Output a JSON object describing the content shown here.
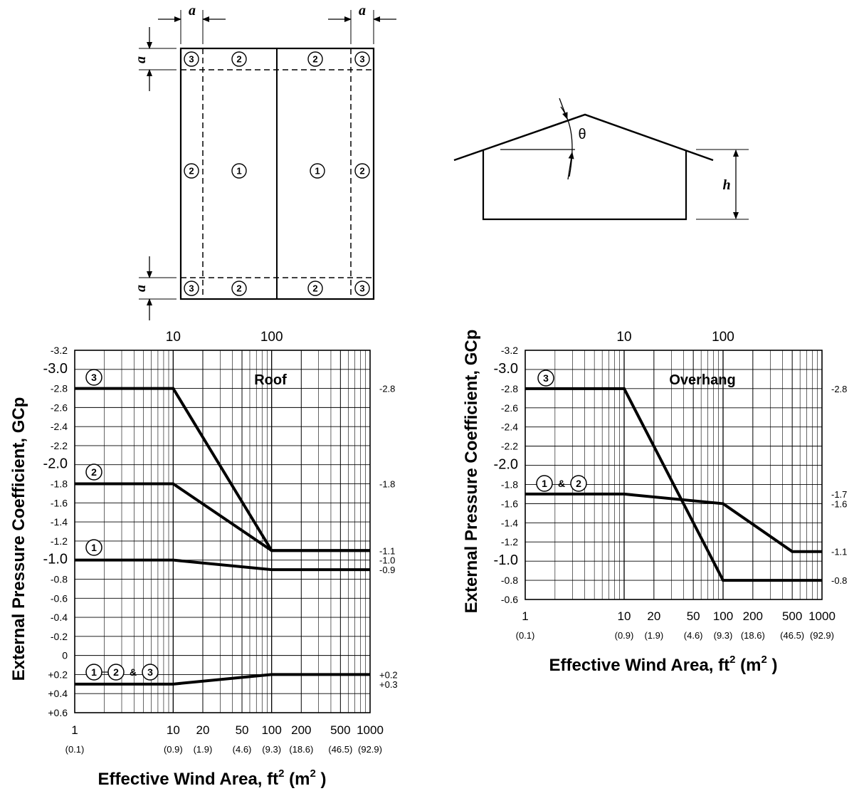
{
  "plan": {
    "dim_a": "a",
    "zones": [
      "1",
      "2",
      "3"
    ]
  },
  "section": {
    "angle_label": "θ",
    "height_label": "h"
  },
  "labels": {
    "ylabel": "External Pressure Coefficient, GCp",
    "xlabel": "Effective Wind Area, ft",
    "xlabel_sup": "2",
    "xlabel_metric": " (m",
    "xlabel_metric_sup": "2",
    "xlabel_close": " )",
    "amp": "&"
  },
  "chart_data": [
    {
      "type": "line",
      "title": "Roof",
      "xscale": "log",
      "xlim": [
        1,
        1000
      ],
      "ylim": [
        -3.2,
        0.6
      ],
      "y_inverted": true,
      "grid": true,
      "top_ticks": [
        "10",
        "100"
      ],
      "yticks": [
        "-3.2",
        "-3.0",
        "-2.8",
        "-2.6",
        "-2.4",
        "-2.2",
        "-2.0",
        "-1.8",
        "-1.6",
        "-1.4",
        "-1.2",
        "-1.0",
        "-0.8",
        "-0.6",
        "-0.4",
        "-0.2",
        "0",
        "+0.2",
        "+0.4",
        "+0.6"
      ],
      "xticks": [
        {
          "x": 1,
          "ft2": "1",
          "m2": "(0.1)"
        },
        {
          "x": 10,
          "ft2": "10",
          "m2": "(0.9)"
        },
        {
          "x": 20,
          "ft2": "20",
          "m2": "(1.9)"
        },
        {
          "x": 50,
          "ft2": "50",
          "m2": "(4.6)"
        },
        {
          "x": 100,
          "ft2": "100",
          "m2": "(9.3)"
        },
        {
          "x": 200,
          "ft2": "200",
          "m2": "(18.6)"
        },
        {
          "x": 500,
          "ft2": "500",
          "m2": "(46.5)"
        },
        {
          "x": 1000,
          "ft2": "1000",
          "m2": "(92.9)"
        }
      ],
      "series": [
        {
          "zones": [
            "3"
          ],
          "x": [
            1,
            10,
            100,
            1000
          ],
          "y": [
            -2.8,
            -2.8,
            -1.1,
            -1.1
          ]
        },
        {
          "zones": [
            "2"
          ],
          "x": [
            1,
            10,
            100,
            1000
          ],
          "y": [
            -1.8,
            -1.8,
            -1.1,
            -1.1
          ]
        },
        {
          "zones": [
            "1"
          ],
          "x": [
            1,
            10,
            100,
            1000
          ],
          "y": [
            -1.0,
            -1.0,
            -0.9,
            -0.9
          ]
        },
        {
          "zones": [
            "1",
            "2",
            "3"
          ],
          "x": [
            1,
            10,
            100,
            1000
          ],
          "y": [
            0.3,
            0.3,
            0.2,
            0.2
          ]
        }
      ],
      "end_labels": [
        {
          "y": -2.8,
          "text": "-2.8"
        },
        {
          "y": -1.8,
          "text": "-1.8"
        },
        {
          "y": -1.1,
          "text": "-1.1"
        },
        {
          "y": -1.0,
          "text": "-1.0"
        },
        {
          "y": -0.9,
          "text": "-0.9"
        },
        {
          "y": 0.2,
          "text": "+0.2"
        },
        {
          "y": 0.3,
          "text": "+0.3"
        }
      ]
    },
    {
      "type": "line",
      "title": "Overhang",
      "xscale": "log",
      "xlim": [
        1,
        1000
      ],
      "ylim": [
        -3.2,
        -0.6
      ],
      "y_inverted": true,
      "grid": true,
      "top_ticks": [
        "10",
        "100"
      ],
      "yticks": [
        "-3.2",
        "-3.0",
        "-2.8",
        "-2.6",
        "-2.4",
        "-2.2",
        "-2.0",
        "-1.8",
        "-1.6",
        "-1.4",
        "-1.2",
        "-1.0",
        "-0.8",
        "-0.6"
      ],
      "xticks": [
        {
          "x": 1,
          "ft2": "1",
          "m2": "(0.1)"
        },
        {
          "x": 10,
          "ft2": "10",
          "m2": "(0.9)"
        },
        {
          "x": 20,
          "ft2": "20",
          "m2": "(1.9)"
        },
        {
          "x": 50,
          "ft2": "50",
          "m2": "(4.6)"
        },
        {
          "x": 100,
          "ft2": "100",
          "m2": "(9.3)"
        },
        {
          "x": 200,
          "ft2": "200",
          "m2": "(18.6)"
        },
        {
          "x": 500,
          "ft2": "500",
          "m2": "(46.5)"
        },
        {
          "x": 1000,
          "ft2": "1000",
          "m2": "(92.9)"
        }
      ],
      "series": [
        {
          "zones": [
            "3"
          ],
          "x": [
            1,
            10,
            100,
            1000
          ],
          "y": [
            -2.8,
            -2.8,
            -0.8,
            -0.8
          ]
        },
        {
          "zones": [
            "1",
            "2"
          ],
          "x": [
            1,
            10,
            100,
            500,
            1000
          ],
          "y": [
            -1.7,
            -1.7,
            -1.6,
            -1.1,
            -1.1
          ]
        }
      ],
      "end_labels": [
        {
          "y": -2.8,
          "text": "-2.8"
        },
        {
          "y": -1.7,
          "text": "-1.7"
        },
        {
          "y": -1.6,
          "text": "-1.6"
        },
        {
          "y": -1.1,
          "text": "-1.1"
        },
        {
          "y": -0.8,
          "text": "-0.8"
        }
      ]
    }
  ]
}
